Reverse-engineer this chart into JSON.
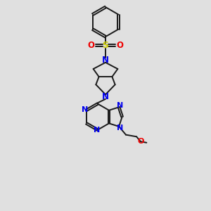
{
  "bg_color": "#e0e0e0",
  "bond_color": "#1a1a1a",
  "n_color": "#0000ee",
  "o_color": "#ee0000",
  "s_color": "#cccc00",
  "lw": 1.4,
  "xlim": [
    0,
    10
  ],
  "ylim": [
    0,
    12
  ],
  "figsize": [
    3.0,
    3.0
  ],
  "dpi": 100
}
